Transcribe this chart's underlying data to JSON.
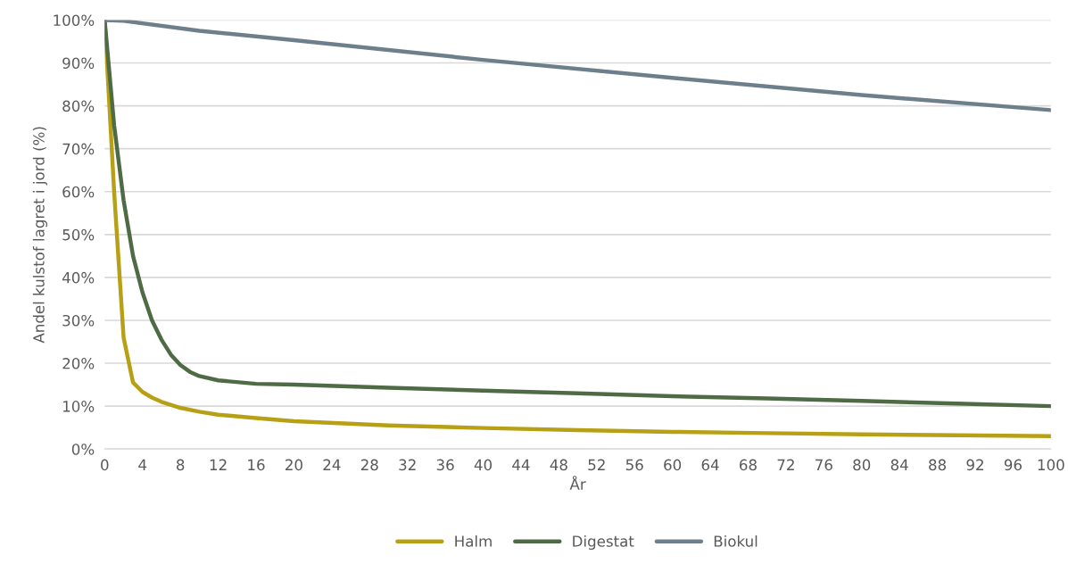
{
  "chart_data": {
    "type": "line",
    "xlabel": "År",
    "ylabel": "Andel kulstof lagret i jord (%)",
    "xlim": [
      0,
      100
    ],
    "xticks": [
      0,
      4,
      8,
      12,
      16,
      20,
      24,
      28,
      32,
      36,
      40,
      44,
      48,
      52,
      56,
      60,
      64,
      68,
      72,
      76,
      80,
      84,
      88,
      92,
      96,
      100
    ],
    "ylim": [
      0,
      100
    ],
    "yticks": [
      {
        "value": 0,
        "label": "0%"
      },
      {
        "value": 10,
        "label": "10%"
      },
      {
        "value": 20,
        "label": "20%"
      },
      {
        "value": 30,
        "label": "30%"
      },
      {
        "value": 40,
        "label": "40%"
      },
      {
        "value": 50,
        "label": "50%"
      },
      {
        "value": 60,
        "label": "60%"
      },
      {
        "value": 70,
        "label": "70%"
      },
      {
        "value": 80,
        "label": "80%"
      },
      {
        "value": 90,
        "label": "90%"
      },
      {
        "value": 100,
        "label": "100%"
      }
    ],
    "grid": "y",
    "legend": "bottom",
    "marker": "none",
    "line_style": "solid",
    "series": [
      {
        "name": "Halm",
        "color": "#b8a016",
        "x": [
          0,
          1,
          2,
          3,
          4,
          5,
          6,
          8,
          10,
          12,
          16,
          20,
          30,
          40,
          50,
          60,
          70,
          80,
          90,
          100
        ],
        "values": [
          100,
          60,
          26,
          15.5,
          13.3,
          12,
          11,
          9.6,
          8.7,
          8,
          7.2,
          6.5,
          5.5,
          4.9,
          4.4,
          4,
          3.7,
          3.4,
          3.2,
          3
        ]
      },
      {
        "name": "Digestat",
        "color": "#4f6b45",
        "x": [
          0,
          1,
          2,
          3,
          4,
          5,
          6,
          7,
          8,
          9,
          10,
          12,
          16,
          20,
          30,
          40,
          50,
          60,
          70,
          80,
          90,
          100
        ],
        "values": [
          100,
          75.5,
          58,
          45,
          36.5,
          30,
          25.5,
          22,
          19.6,
          18,
          17,
          16,
          15.2,
          15,
          14.3,
          13.6,
          13,
          12.3,
          11.8,
          11.2,
          10.6,
          10
        ]
      },
      {
        "name": "Biokul",
        "color": "#6e7f8c",
        "x": [
          0,
          2,
          10,
          20,
          40,
          60,
          80,
          100
        ],
        "values": [
          100,
          99.8,
          97.5,
          95.3,
          90.7,
          86.5,
          82.5,
          79
        ]
      }
    ]
  }
}
